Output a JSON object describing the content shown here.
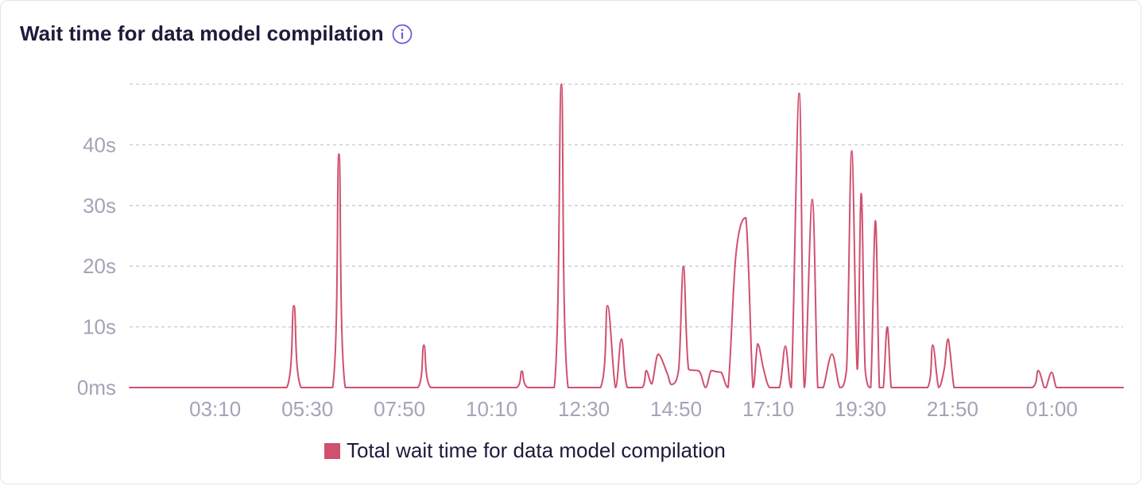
{
  "header": {
    "title": "Wait time for data model compilation",
    "info_icon": "info-circle-icon"
  },
  "colors": {
    "series": "#d0506e",
    "grid": "#c9c8d4",
    "tick_text": "#a5a3b8",
    "title_text": "#1c1b3a",
    "info_icon": "#6a5ae0"
  },
  "chart_data": {
    "type": "line",
    "title": "Wait time for data model compilation",
    "xlabel": "",
    "ylabel": "",
    "y_unit": "s",
    "ylim": [
      0,
      50
    ],
    "y_ticks": [
      0,
      10,
      20,
      30,
      40
    ],
    "y_tick_labels": [
      "0ms",
      "10s",
      "20s",
      "30s",
      "40s"
    ],
    "x_ticks": [
      "03:10",
      "05:30",
      "07:50",
      "10:10",
      "12:30",
      "14:50",
      "17:10",
      "19:30",
      "21:50",
      "01:00"
    ],
    "x_range_hours": [
      1.0,
      26.15
    ],
    "x_tick_hours": [
      3.1667,
      5.5,
      7.8333,
      10.1667,
      12.5,
      14.8333,
      17.1667,
      19.5,
      21.8333,
      25.0
    ],
    "grid": true,
    "legend_position": "bottom",
    "series": [
      {
        "name": "Total wait time for data model compilation",
        "x_hours": [
          1.0,
          4.98,
          5.16,
          5.34,
          6.14,
          6.3,
          6.46,
          8.3,
          8.45,
          8.62,
          10.8,
          10.93,
          11.08,
          11.75,
          11.93,
          12.1,
          12.92,
          13.1,
          13.3,
          13.45,
          13.6,
          13.98,
          14.08,
          14.22,
          14.38,
          14.6,
          14.72,
          14.9,
          15.02,
          15.15,
          15.42,
          15.58,
          15.72,
          15.86,
          15.98,
          16.15,
          16.35,
          16.6,
          16.78,
          16.9,
          17.05,
          17.2,
          17.45,
          17.6,
          17.75,
          17.95,
          18.08,
          18.28,
          18.42,
          18.56,
          18.78,
          18.98,
          19.15,
          19.28,
          19.42,
          19.52,
          19.62,
          19.76,
          19.88,
          19.98,
          20.08,
          20.18,
          20.28,
          20.4,
          20.5,
          20.62,
          21.2,
          21.33,
          21.48,
          21.62,
          21.72,
          21.87,
          21.98,
          22.1,
          23.85,
          24.0,
          24.15,
          24.2,
          24.34,
          24.46,
          24.6,
          26.15
        ],
        "values": [
          0,
          0,
          13.5,
          0,
          0,
          38.5,
          0,
          0,
          7,
          0,
          0,
          2.7,
          0,
          0,
          50,
          0,
          0,
          13.5,
          0,
          8,
          0,
          0,
          2.8,
          0.6,
          5.5,
          2.5,
          0.5,
          3,
          20,
          3,
          2.7,
          0,
          2.8,
          2.6,
          2.5,
          0,
          22,
          28,
          0,
          7.2,
          3,
          0,
          0,
          6.8,
          0,
          48.5,
          0,
          31,
          0,
          0,
          5.5,
          0,
          3,
          39,
          3,
          32,
          3,
          0,
          27.5,
          0,
          0,
          10,
          0,
          0,
          0,
          0,
          0,
          7,
          0,
          3,
          8,
          0,
          0,
          0,
          0,
          2.8,
          0,
          0,
          2.5,
          0,
          0,
          0
        ]
      }
    ]
  },
  "legend": {
    "label": "Total wait time for data model compilation"
  }
}
